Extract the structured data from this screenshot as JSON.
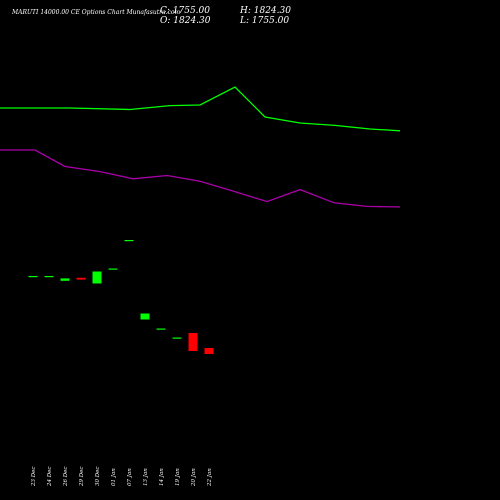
{
  "header": {
    "title": "MARUTI 14000.00 CE Options Chart Munafasutra.com",
    "close": "C: 1755.00",
    "high": "H: 1824.30",
    "open": "O: 1824.30",
    "low": "L: 1755.00"
  },
  "colors": {
    "background": "#000000",
    "text": "#ffffff",
    "upper_line": "#00ff00",
    "lower_line": "#aa00aa",
    "up": "#00ff00",
    "down": "#ff0000"
  },
  "chart_data": {
    "type": "candlestick",
    "dates": [
      "23 Dec",
      "24 Dec",
      "26 Dec",
      "29 Dec",
      "30 Dec",
      "01 Jan",
      "07 Jan",
      "13 Jan",
      "14 Jan",
      "19 Jan",
      "20 Jan",
      "22 Jan"
    ],
    "candles": [
      {
        "open": 18.0,
        "close": 18.0,
        "high": 18.0,
        "low": 18.0,
        "dir": "flat"
      },
      {
        "open": 18.0,
        "close": 18.0,
        "high": 18.0,
        "low": 18.0,
        "dir": "flat"
      },
      {
        "open": 17.2,
        "close": 16.4,
        "high": 17.2,
        "low": 16.4,
        "dir": "up"
      },
      {
        "open": 16.8,
        "close": 17.4,
        "high": 17.4,
        "low": 16.8,
        "dir": "down"
      },
      {
        "open": 15.5,
        "close": 19.5,
        "high": 19.5,
        "low": 15.5,
        "dir": "up"
      },
      {
        "open": 20.5,
        "close": 20.5,
        "high": 20.5,
        "low": 20.5,
        "dir": "flat"
      },
      {
        "open": 30.0,
        "close": 30.0,
        "high": 30.0,
        "low": 30.0,
        "dir": "flat"
      },
      {
        "open": 5.5,
        "close": 3.5,
        "high": 5.5,
        "low": 3.5,
        "dir": "up"
      },
      {
        "open": 0.5,
        "close": 0.5,
        "high": 0.5,
        "low": 0.5,
        "dir": "flat"
      },
      {
        "open": -2.5,
        "close": -2.5,
        "high": -2.5,
        "low": -2.5,
        "dir": "flat"
      },
      {
        "open": -1.0,
        "close": -7.0,
        "high": -1.0,
        "low": -7.0,
        "dir": "down"
      },
      {
        "open": -6.0,
        "close": -8.0,
        "high": -6.0,
        "low": -8.0,
        "dir": "down"
      }
    ],
    "upper_line_points": [
      [
        0,
        74.0
      ],
      [
        70,
        74.0
      ],
      [
        130,
        73.5
      ],
      [
        170,
        74.8
      ],
      [
        200,
        75.0
      ],
      [
        235,
        81.0
      ],
      [
        265,
        71.0
      ],
      [
        300,
        69.0
      ],
      [
        335,
        68.2
      ],
      [
        370,
        67.0
      ],
      [
        400,
        66.4
      ]
    ],
    "lower_line_points": [
      [
        0,
        60.0
      ],
      [
        35,
        60.0
      ],
      [
        65,
        54.5
      ],
      [
        100,
        52.8
      ],
      [
        133,
        50.4
      ],
      [
        167,
        51.5
      ],
      [
        200,
        49.6
      ],
      [
        234,
        46.2
      ],
      [
        267,
        42.8
      ],
      [
        300,
        46.8
      ],
      [
        334,
        42.4
      ],
      [
        367,
        41.2
      ],
      [
        400,
        41.0
      ]
    ],
    "xlim": [
      0,
      400
    ],
    "ylim": [
      -40,
      100
    ]
  }
}
